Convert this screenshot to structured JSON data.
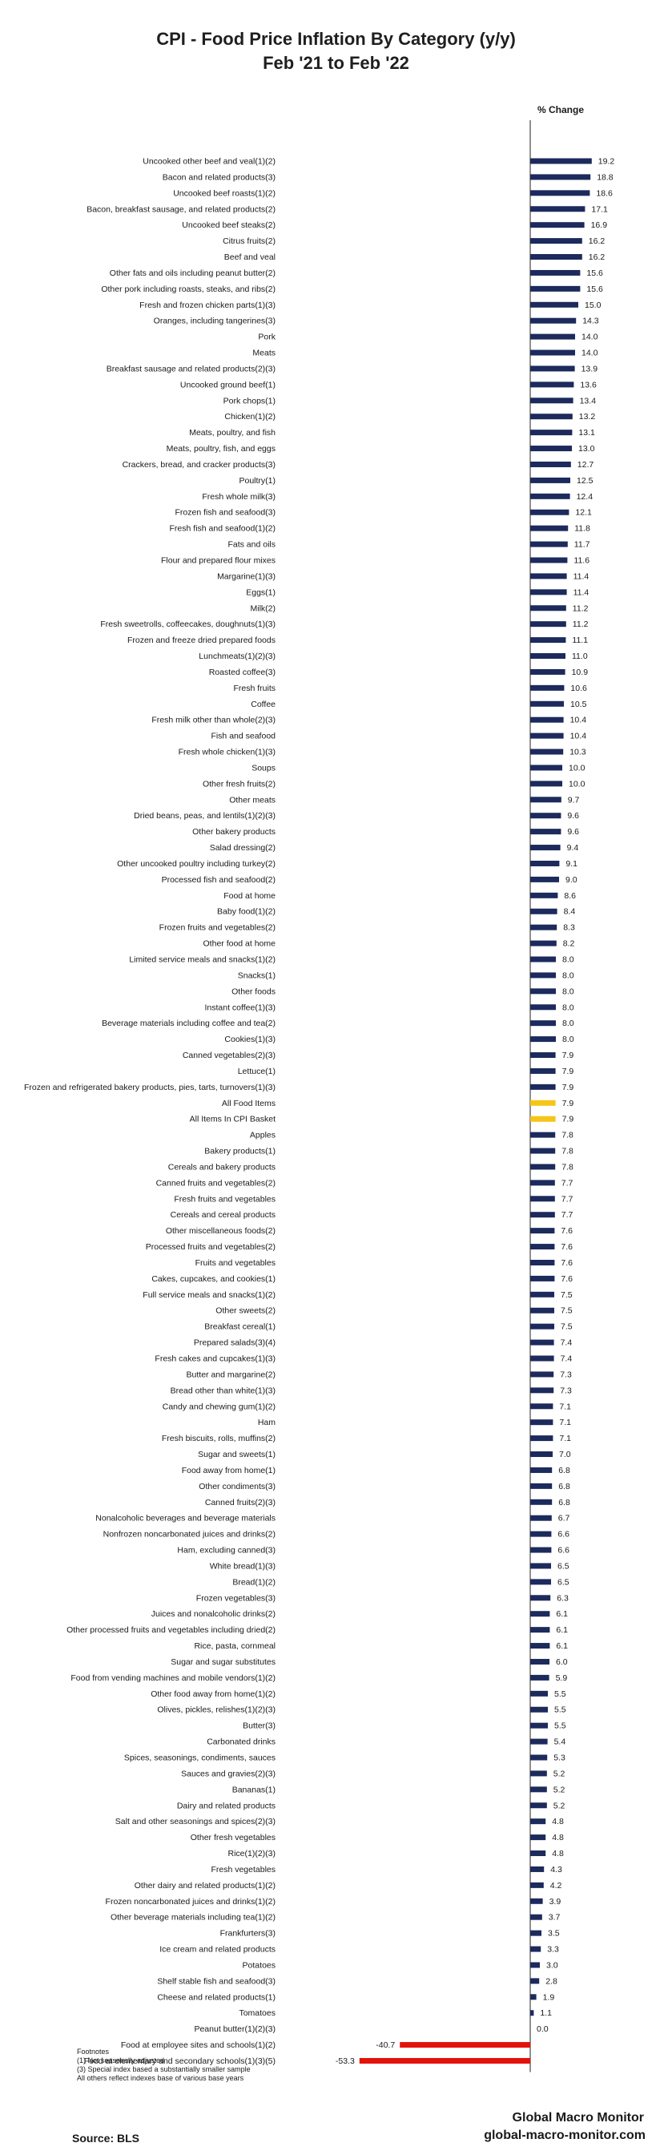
{
  "chart_data": {
    "type": "bar",
    "orientation": "horizontal",
    "title": "CPI - Food Price Inflation By Category (y/y)",
    "subtitle": "Feb '21 to Feb '22",
    "value_header": "% Change",
    "colors": {
      "default": "#1c2a5c",
      "highlight": "#f5c518",
      "negative": "#e3120b"
    },
    "bars": [
      {
        "label": "Uncooked other beef and veal(1)(2)",
        "value": 19.2
      },
      {
        "label": "Bacon and related products(3)",
        "value": 18.8
      },
      {
        "label": "Uncooked beef roasts(1)(2)",
        "value": 18.6
      },
      {
        "label": "Bacon, breakfast sausage, and related products(2)",
        "value": 17.1
      },
      {
        "label": "Uncooked beef steaks(2)",
        "value": 16.9
      },
      {
        "label": "Citrus fruits(2)",
        "value": 16.2
      },
      {
        "label": "Beef and veal",
        "value": 16.2
      },
      {
        "label": "Other fats and oils including peanut butter(2)",
        "value": 15.6
      },
      {
        "label": "Other pork including roasts, steaks, and ribs(2)",
        "value": 15.6
      },
      {
        "label": "Fresh and frozen chicken parts(1)(3)",
        "value": 15.0
      },
      {
        "label": "Oranges, including tangerines(3)",
        "value": 14.3
      },
      {
        "label": "Pork",
        "value": 14.0
      },
      {
        "label": "Meats",
        "value": 14.0
      },
      {
        "label": "Breakfast sausage and related products(2)(3)",
        "value": 13.9
      },
      {
        "label": "Uncooked ground beef(1)",
        "value": 13.6
      },
      {
        "label": "Pork chops(1)",
        "value": 13.4
      },
      {
        "label": "Chicken(1)(2)",
        "value": 13.2
      },
      {
        "label": "Meats, poultry, and fish",
        "value": 13.1
      },
      {
        "label": "Meats, poultry, fish, and eggs",
        "value": 13.0
      },
      {
        "label": "Crackers, bread, and cracker products(3)",
        "value": 12.7
      },
      {
        "label": "Poultry(1)",
        "value": 12.5
      },
      {
        "label": "Fresh whole milk(3)",
        "value": 12.4
      },
      {
        "label": "Frozen fish and seafood(3)",
        "value": 12.1
      },
      {
        "label": "Fresh fish and seafood(1)(2)",
        "value": 11.8
      },
      {
        "label": "Fats and oils",
        "value": 11.7
      },
      {
        "label": "Flour and prepared flour mixes",
        "value": 11.6
      },
      {
        "label": "Margarine(1)(3)",
        "value": 11.4
      },
      {
        "label": "Eggs(1)",
        "value": 11.4
      },
      {
        "label": "Milk(2)",
        "value": 11.2
      },
      {
        "label": "Fresh sweetrolls, coffeecakes, doughnuts(1)(3)",
        "value": 11.2
      },
      {
        "label": "Frozen and freeze dried prepared foods",
        "value": 11.1
      },
      {
        "label": "Lunchmeats(1)(2)(3)",
        "value": 11.0
      },
      {
        "label": "Roasted coffee(3)",
        "value": 10.9
      },
      {
        "label": "Fresh fruits",
        "value": 10.6
      },
      {
        "label": "Coffee",
        "value": 10.5
      },
      {
        "label": "Fresh milk other than whole(2)(3)",
        "value": 10.4
      },
      {
        "label": "Fish and seafood",
        "value": 10.4
      },
      {
        "label": "Fresh whole chicken(1)(3)",
        "value": 10.3
      },
      {
        "label": "Soups",
        "value": 10.0
      },
      {
        "label": "Other fresh fruits(2)",
        "value": 10.0
      },
      {
        "label": "Other meats",
        "value": 9.7
      },
      {
        "label": "Dried beans, peas, and lentils(1)(2)(3)",
        "value": 9.6
      },
      {
        "label": "Other bakery products",
        "value": 9.6
      },
      {
        "label": "Salad dressing(2)",
        "value": 9.4
      },
      {
        "label": "Other uncooked poultry including turkey(2)",
        "value": 9.1
      },
      {
        "label": "Processed fish and seafood(2)",
        "value": 9.0
      },
      {
        "label": "Food at home",
        "value": 8.6
      },
      {
        "label": "Baby food(1)(2)",
        "value": 8.4
      },
      {
        "label": "Frozen fruits and vegetables(2)",
        "value": 8.3
      },
      {
        "label": "Other food at home",
        "value": 8.2
      },
      {
        "label": "Limited service meals and snacks(1)(2)",
        "value": 8.0
      },
      {
        "label": "Snacks(1)",
        "value": 8.0
      },
      {
        "label": "Other foods",
        "value": 8.0
      },
      {
        "label": "Instant coffee(1)(3)",
        "value": 8.0
      },
      {
        "label": "Beverage materials including coffee and tea(2)",
        "value": 8.0
      },
      {
        "label": "Cookies(1)(3)",
        "value": 8.0
      },
      {
        "label": "Canned vegetables(2)(3)",
        "value": 7.9
      },
      {
        "label": "Lettuce(1)",
        "value": 7.9
      },
      {
        "label": "Frozen and refrigerated bakery products, pies, tarts, turnovers(1)(3)",
        "value": 7.9
      },
      {
        "label": "All Food Items",
        "value": 7.9,
        "highlight": true
      },
      {
        "label": "All Items In CPI Basket",
        "value": 7.9,
        "highlight": true
      },
      {
        "label": "Apples",
        "value": 7.8
      },
      {
        "label": "Bakery products(1)",
        "value": 7.8
      },
      {
        "label": "Cereals and bakery products",
        "value": 7.8
      },
      {
        "label": "Canned fruits and vegetables(2)",
        "value": 7.7
      },
      {
        "label": "Fresh fruits and vegetables",
        "value": 7.7
      },
      {
        "label": "Cereals and cereal products",
        "value": 7.7
      },
      {
        "label": "Other miscellaneous foods(2)",
        "value": 7.6
      },
      {
        "label": "Processed fruits and vegetables(2)",
        "value": 7.6
      },
      {
        "label": "Fruits and vegetables",
        "value": 7.6
      },
      {
        "label": "Cakes, cupcakes, and cookies(1)",
        "value": 7.6
      },
      {
        "label": "Full service meals and snacks(1)(2)",
        "value": 7.5
      },
      {
        "label": "Other sweets(2)",
        "value": 7.5
      },
      {
        "label": "Breakfast cereal(1)",
        "value": 7.5
      },
      {
        "label": "Prepared salads(3)(4)",
        "value": 7.4
      },
      {
        "label": "Fresh cakes and cupcakes(1)(3)",
        "value": 7.4
      },
      {
        "label": "Butter and margarine(2)",
        "value": 7.3
      },
      {
        "label": "Bread other than white(1)(3)",
        "value": 7.3
      },
      {
        "label": "Candy and chewing gum(1)(2)",
        "value": 7.1
      },
      {
        "label": "Ham",
        "value": 7.1
      },
      {
        "label": "Fresh biscuits, rolls, muffins(2)",
        "value": 7.1
      },
      {
        "label": "Sugar and sweets(1)",
        "value": 7.0
      },
      {
        "label": "Food away from home(1)",
        "value": 6.8
      },
      {
        "label": "Other condiments(3)",
        "value": 6.8
      },
      {
        "label": "Canned fruits(2)(3)",
        "value": 6.8
      },
      {
        "label": "Nonalcoholic beverages and beverage materials",
        "value": 6.7
      },
      {
        "label": "Nonfrozen noncarbonated juices and drinks(2)",
        "value": 6.6
      },
      {
        "label": "Ham, excluding canned(3)",
        "value": 6.6
      },
      {
        "label": "White bread(1)(3)",
        "value": 6.5
      },
      {
        "label": "Bread(1)(2)",
        "value": 6.5
      },
      {
        "label": "Frozen vegetables(3)",
        "value": 6.3
      },
      {
        "label": "Juices and nonalcoholic drinks(2)",
        "value": 6.1
      },
      {
        "label": "Other processed fruits and vegetables including dried(2)",
        "value": 6.1
      },
      {
        "label": "Rice, pasta, cornmeal",
        "value": 6.1
      },
      {
        "label": "Sugar and sugar substitutes",
        "value": 6.0
      },
      {
        "label": "Food from vending machines and mobile vendors(1)(2)",
        "value": 5.9
      },
      {
        "label": "Other food away from home(1)(2)",
        "value": 5.5
      },
      {
        "label": "Olives, pickles, relishes(1)(2)(3)",
        "value": 5.5
      },
      {
        "label": "Butter(3)",
        "value": 5.5
      },
      {
        "label": "Carbonated drinks",
        "value": 5.4
      },
      {
        "label": "Spices, seasonings, condiments, sauces",
        "value": 5.3
      },
      {
        "label": "Sauces and gravies(2)(3)",
        "value": 5.2
      },
      {
        "label": "Bananas(1)",
        "value": 5.2
      },
      {
        "label": "Dairy and related products",
        "value": 5.2
      },
      {
        "label": "Salt and other seasonings and spices(2)(3)",
        "value": 4.8
      },
      {
        "label": "Other fresh vegetables",
        "value": 4.8
      },
      {
        "label": "Rice(1)(2)(3)",
        "value": 4.8
      },
      {
        "label": "Fresh vegetables",
        "value": 4.3
      },
      {
        "label": "Other dairy and related products(1)(2)",
        "value": 4.2
      },
      {
        "label": "Frozen noncarbonated juices and drinks(1)(2)",
        "value": 3.9
      },
      {
        "label": "Other beverage materials including tea(1)(2)",
        "value": 3.7
      },
      {
        "label": "Frankfurters(3)",
        "value": 3.5
      },
      {
        "label": "Ice cream and related products",
        "value": 3.3
      },
      {
        "label": "Potatoes",
        "value": 3.0
      },
      {
        "label": "Shelf stable fish and seafood(3)",
        "value": 2.8
      },
      {
        "label": "Cheese and related products(1)",
        "value": 1.9
      },
      {
        "label": "Tomatoes",
        "value": 1.1
      },
      {
        "label": "Peanut butter(1)(2)(3)",
        "value": 0.0
      },
      {
        "label": "Food at employee sites and schools(1)(2)",
        "value": -40.7
      },
      {
        "label": "Food at elementary and secondary schools(1)(3)(5)",
        "value": -53.3
      }
    ]
  },
  "footnotes": {
    "heading": "Footnotes",
    "lines": [
      "(1) Not seasonally adjusted",
      "(3) Special index based a substantially smaller sample",
      "All others reflect indexes base of various base years"
    ]
  },
  "source": "Source:  BLS",
  "brand": {
    "name": "Global Macro Monitor",
    "url": "global-macro-monitor.com"
  }
}
